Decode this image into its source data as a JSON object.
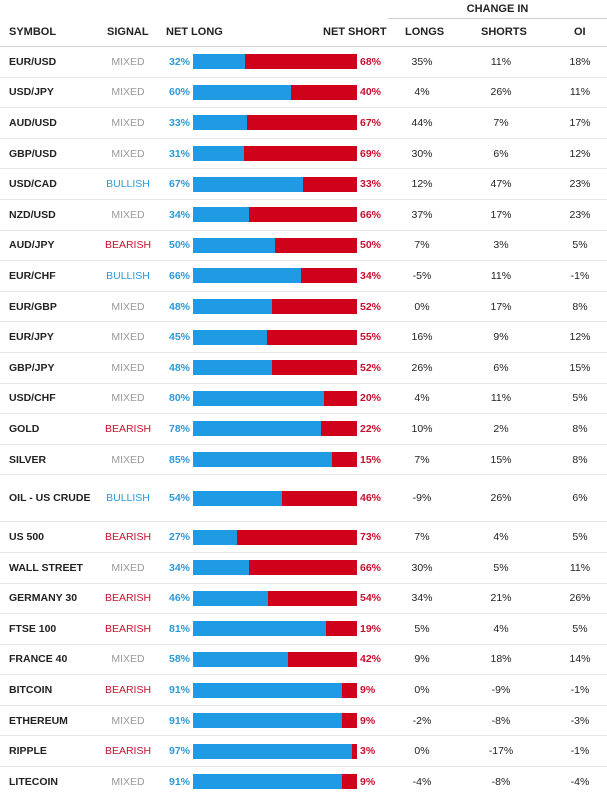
{
  "header": {
    "change_in": "CHANGE IN",
    "symbol": "SYMBOL",
    "signal": "SIGNAL",
    "net_long": "NET LONG",
    "net_short": "NET SHORT",
    "longs": "LONGS",
    "shorts": "SHORTS",
    "oi": "OI"
  },
  "colors": {
    "long": "#1f9be4",
    "short": "#d0021b",
    "bullish": "#2a9ad8",
    "bearish": "#c8102e",
    "mixed": "#9a9a9a"
  },
  "rows": [
    {
      "symbol": "EUR/USD",
      "signal": "MIXED",
      "net_long": "32%",
      "net_short": "68%",
      "longs": "35%",
      "shorts": "11%",
      "oi": "18%"
    },
    {
      "symbol": "USD/JPY",
      "signal": "MIXED",
      "net_long": "60%",
      "net_short": "40%",
      "longs": "4%",
      "shorts": "26%",
      "oi": "11%"
    },
    {
      "symbol": "AUD/USD",
      "signal": "MIXED",
      "net_long": "33%",
      "net_short": "67%",
      "longs": "44%",
      "shorts": "7%",
      "oi": "17%"
    },
    {
      "symbol": "GBP/USD",
      "signal": "MIXED",
      "net_long": "31%",
      "net_short": "69%",
      "longs": "30%",
      "shorts": "6%",
      "oi": "12%"
    },
    {
      "symbol": "USD/CAD",
      "signal": "BULLISH",
      "net_long": "67%",
      "net_short": "33%",
      "longs": "12%",
      "shorts": "47%",
      "oi": "23%"
    },
    {
      "symbol": "NZD/USD",
      "signal": "MIXED",
      "net_long": "34%",
      "net_short": "66%",
      "longs": "37%",
      "shorts": "17%",
      "oi": "23%"
    },
    {
      "symbol": "AUD/JPY",
      "signal": "BEARISH",
      "net_long": "50%",
      "net_short": "50%",
      "longs": "7%",
      "shorts": "3%",
      "oi": "5%"
    },
    {
      "symbol": "EUR/CHF",
      "signal": "BULLISH",
      "net_long": "66%",
      "net_short": "34%",
      "longs": "-5%",
      "shorts": "11%",
      "oi": "-1%"
    },
    {
      "symbol": "EUR/GBP",
      "signal": "MIXED",
      "net_long": "48%",
      "net_short": "52%",
      "longs": "0%",
      "shorts": "17%",
      "oi": "8%"
    },
    {
      "symbol": "EUR/JPY",
      "signal": "MIXED",
      "net_long": "45%",
      "net_short": "55%",
      "longs": "16%",
      "shorts": "9%",
      "oi": "12%"
    },
    {
      "symbol": "GBP/JPY",
      "signal": "MIXED",
      "net_long": "48%",
      "net_short": "52%",
      "longs": "26%",
      "shorts": "6%",
      "oi": "15%"
    },
    {
      "symbol": "USD/CHF",
      "signal": "MIXED",
      "net_long": "80%",
      "net_short": "20%",
      "longs": "4%",
      "shorts": "11%",
      "oi": "5%"
    },
    {
      "symbol": "GOLD",
      "signal": "BEARISH",
      "net_long": "78%",
      "net_short": "22%",
      "longs": "10%",
      "shorts": "2%",
      "oi": "8%"
    },
    {
      "symbol": "SILVER",
      "signal": "MIXED",
      "net_long": "85%",
      "net_short": "15%",
      "longs": "7%",
      "shorts": "15%",
      "oi": "8%"
    },
    {
      "symbol": "OIL - US CRUDE",
      "signal": "BULLISH",
      "net_long": "54%",
      "net_short": "46%",
      "longs": "-9%",
      "shorts": "26%",
      "oi": "6%"
    },
    {
      "symbol": "US 500",
      "signal": "BEARISH",
      "net_long": "27%",
      "net_short": "73%",
      "longs": "7%",
      "shorts": "4%",
      "oi": "5%"
    },
    {
      "symbol": "WALL STREET",
      "signal": "MIXED",
      "net_long": "34%",
      "net_short": "66%",
      "longs": "30%",
      "shorts": "5%",
      "oi": "11%"
    },
    {
      "symbol": "GERMANY 30",
      "signal": "BEARISH",
      "net_long": "46%",
      "net_short": "54%",
      "longs": "34%",
      "shorts": "21%",
      "oi": "26%"
    },
    {
      "symbol": "FTSE 100",
      "signal": "BEARISH",
      "net_long": "81%",
      "net_short": "19%",
      "longs": "5%",
      "shorts": "4%",
      "oi": "5%"
    },
    {
      "symbol": "FRANCE 40",
      "signal": "MIXED",
      "net_long": "58%",
      "net_short": "42%",
      "longs": "9%",
      "shorts": "18%",
      "oi": "14%"
    },
    {
      "symbol": "BITCOIN",
      "signal": "BEARISH",
      "net_long": "91%",
      "net_short": "9%",
      "longs": "0%",
      "shorts": "-9%",
      "oi": "-1%"
    },
    {
      "symbol": "ETHEREUM",
      "signal": "MIXED",
      "net_long": "91%",
      "net_short": "9%",
      "longs": "-2%",
      "shorts": "-8%",
      "oi": "-3%"
    },
    {
      "symbol": "RIPPLE",
      "signal": "BEARISH",
      "net_long": "97%",
      "net_short": "3%",
      "longs": "0%",
      "shorts": "-17%",
      "oi": "-1%"
    },
    {
      "symbol": "LITECOIN",
      "signal": "MIXED",
      "net_long": "91%",
      "net_short": "9%",
      "longs": "-4%",
      "shorts": "-8%",
      "oi": "-4%"
    }
  ]
}
